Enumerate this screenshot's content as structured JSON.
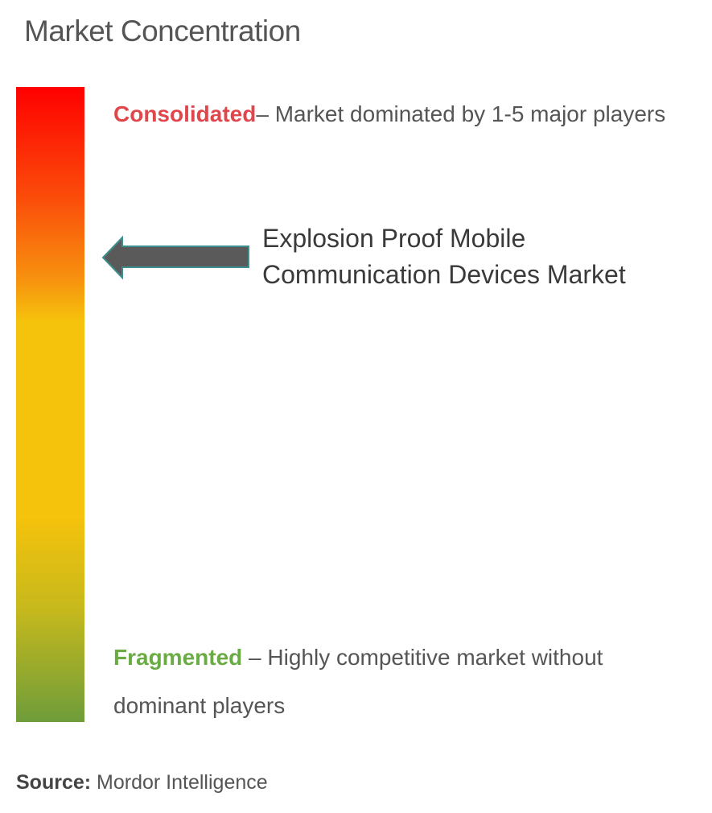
{
  "title": "Market Concentration",
  "scale": {
    "top_color": "#ff0000",
    "middle_color": "#f5c20c",
    "bottom_color": "#6e9d3a"
  },
  "consolidated": {
    "label": "Consolidated",
    "description": "– Market dominated by 1-5 major players",
    "color": "#e0474c"
  },
  "fragmented": {
    "label": "Fragmented",
    "description": " – Highly competitive market without dominant players",
    "color": "#6aac43"
  },
  "marker": {
    "label": "Explosion Proof Mobile Communication Devices Market",
    "icon": "arrow-left-icon"
  },
  "source": {
    "label": "Source:",
    "value": " Mordor Intelligence"
  }
}
